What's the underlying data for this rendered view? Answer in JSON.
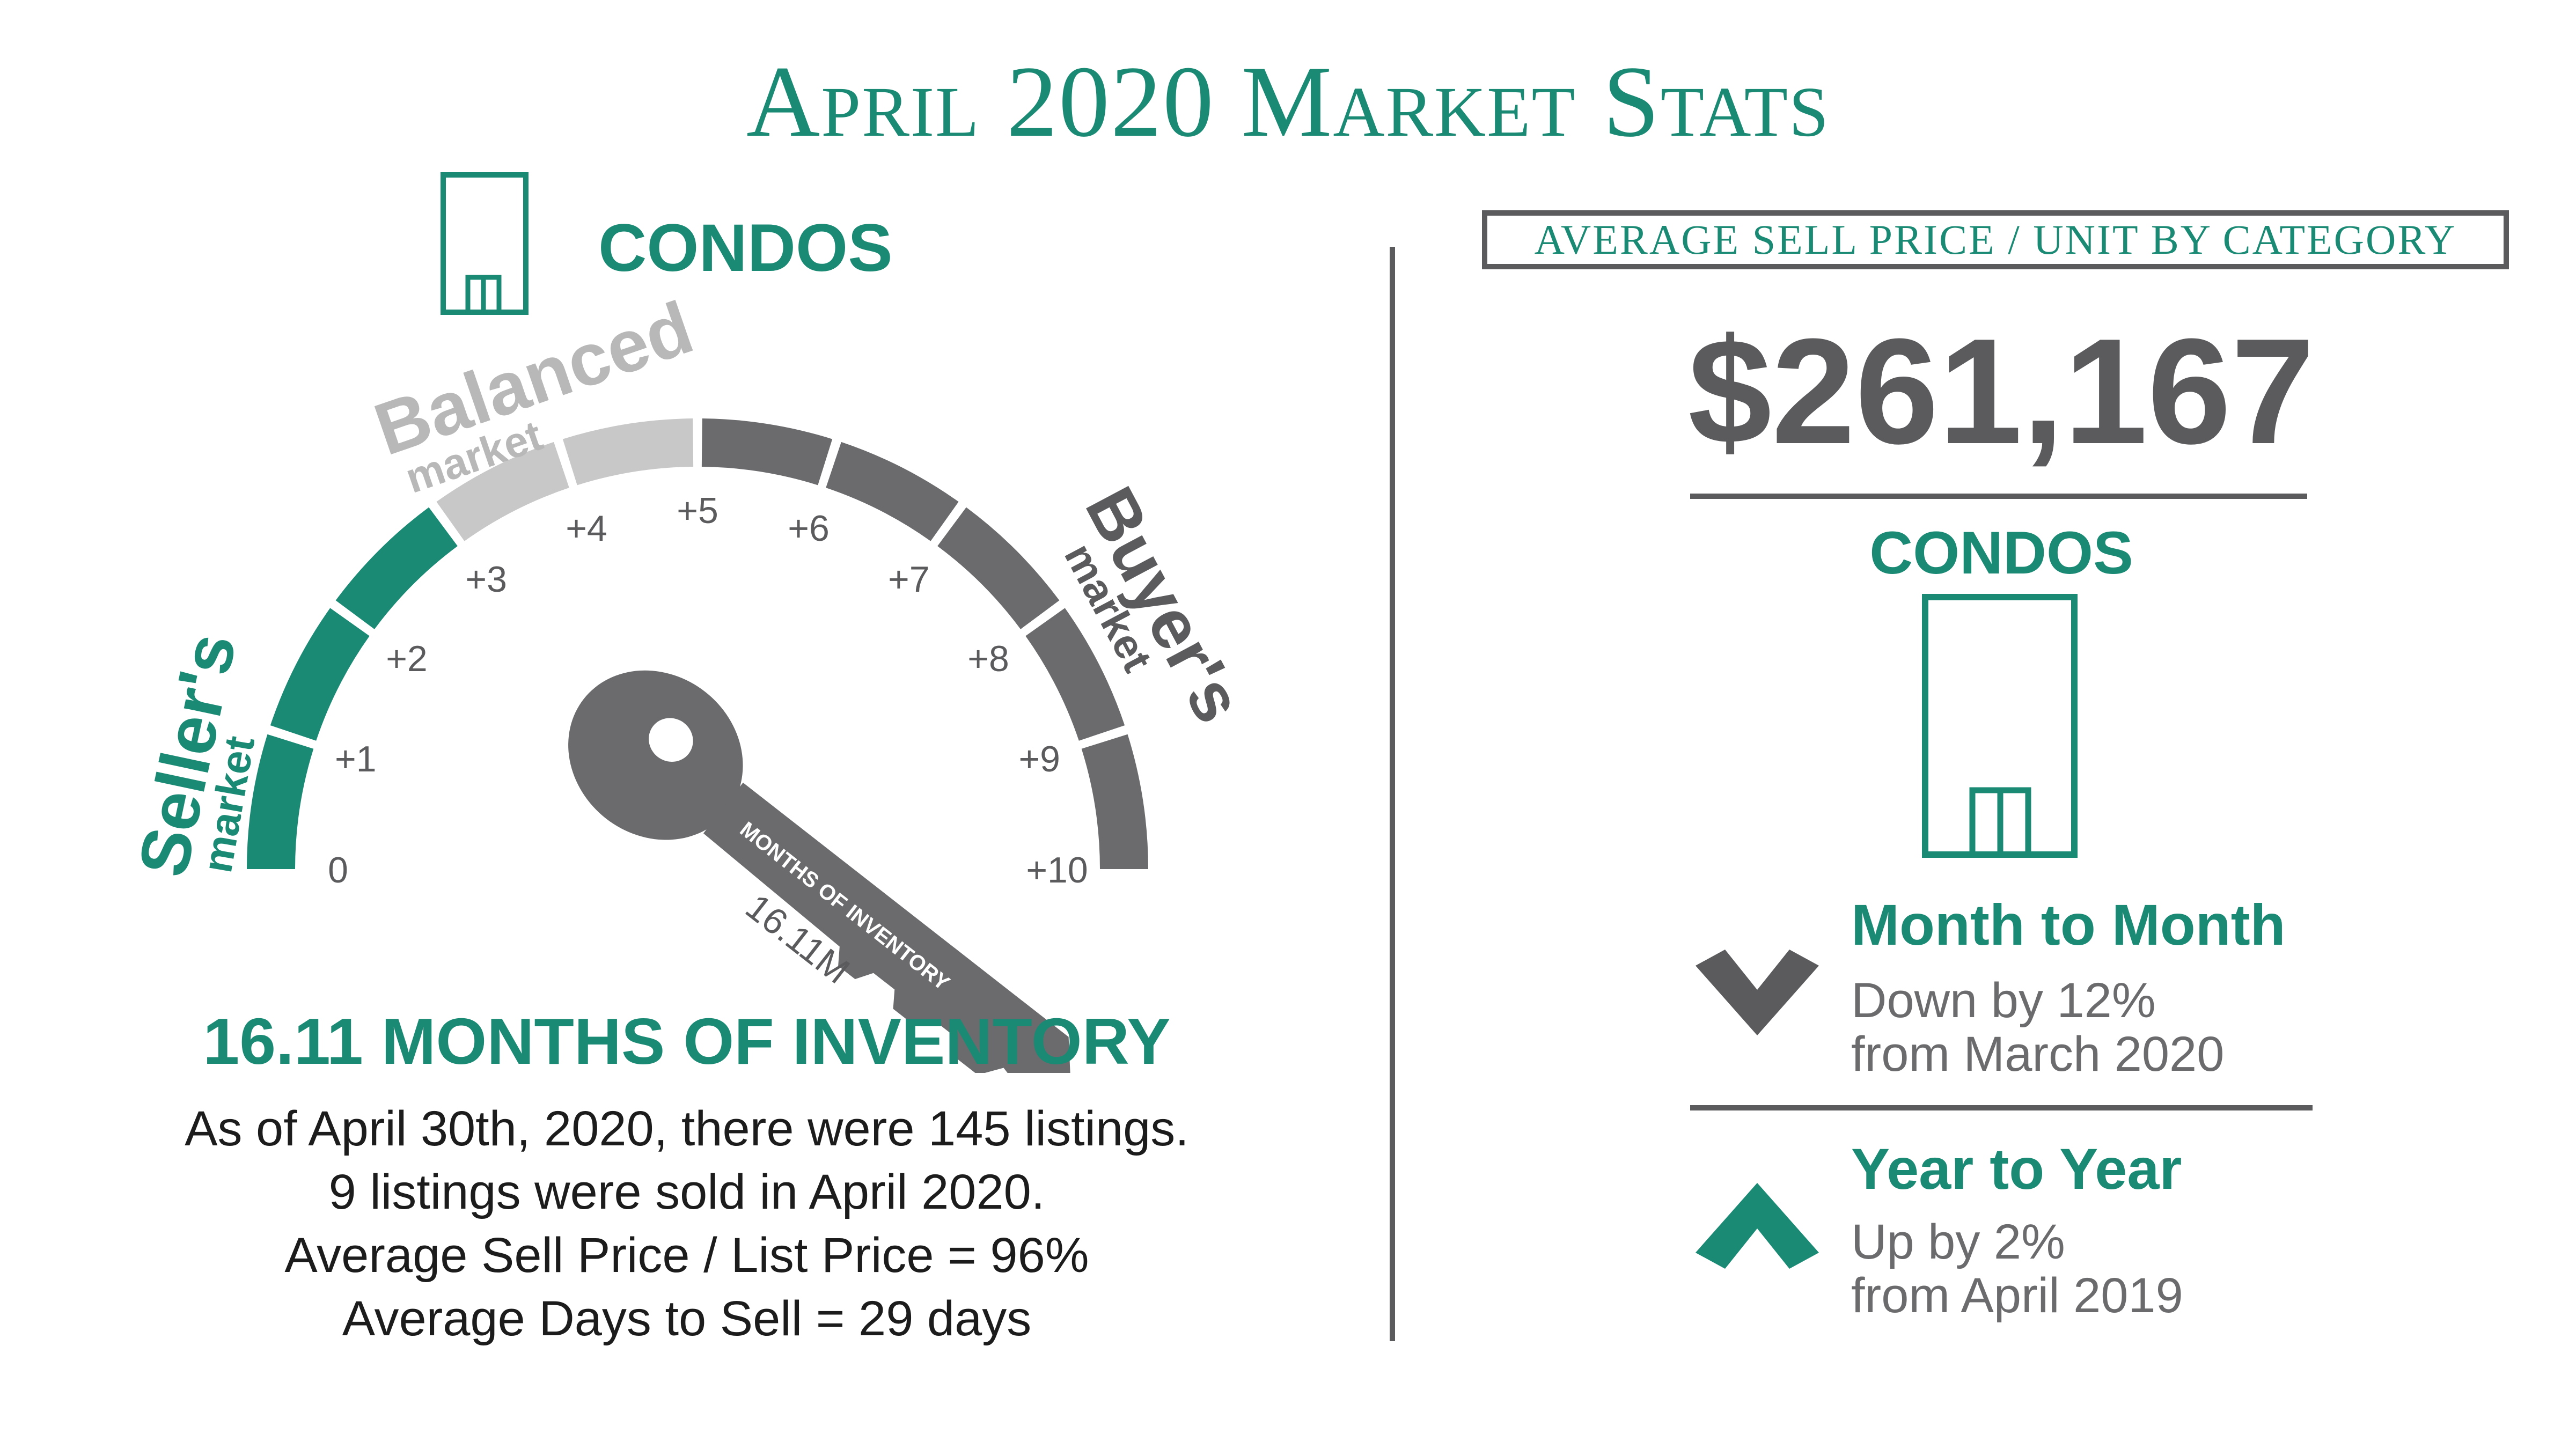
{
  "header": {
    "title": "April 2020 Market Stats"
  },
  "left": {
    "category": "CONDOS",
    "icon": "building-icon",
    "gauge": {
      "tick_labels": [
        "0",
        "+1",
        "+2",
        "+3",
        "+4",
        "+5",
        "+6",
        "+7",
        "+8",
        "+9",
        "+10"
      ],
      "sellers_label": "Seller's",
      "sellers_sub": "market",
      "balanced_label": "Balanced",
      "balanced_sub": "market",
      "buyers_label": "Buyer's",
      "buyers_sub": "market",
      "key_text": "MONTHS OF INVENTORY",
      "key_value": "16.11M",
      "months_value": 16.11,
      "colors": {
        "sellers": "#1a8a74",
        "balanced": "#c8c8c8",
        "buyers": "#6b6b6e",
        "key": "#6b6b6e"
      }
    },
    "inventory_title": "16.11 MONTHS OF INVENTORY",
    "inventory_lines": [
      "As of April 30th, 2020, there were 145 listings.",
      "9 listings were sold in April  2020.",
      "Average Sell Price / List Price = 96%",
      "Average Days to Sell = 29 days"
    ]
  },
  "right": {
    "header": "AVERAGE SELL PRICE / UNIT BY CATEGORY",
    "price": "$261,167",
    "category": "CONDOS",
    "icon": "building-icon",
    "month_to_month": {
      "title": "Month to Month",
      "line1": "Down by 12%",
      "line2": "from March 2020",
      "icon": "chevron-down-icon",
      "color": "#5b5b5e"
    },
    "year_to_year": {
      "title": "Year to Year",
      "line1": "Up by 2%",
      "line2": "from April 2019",
      "icon": "chevron-up-icon",
      "color": "#1a8a74"
    }
  },
  "colors": {
    "accent": "#1a8a74",
    "dark_gray": "#5b5b5e",
    "text": "#1c1c1c"
  }
}
